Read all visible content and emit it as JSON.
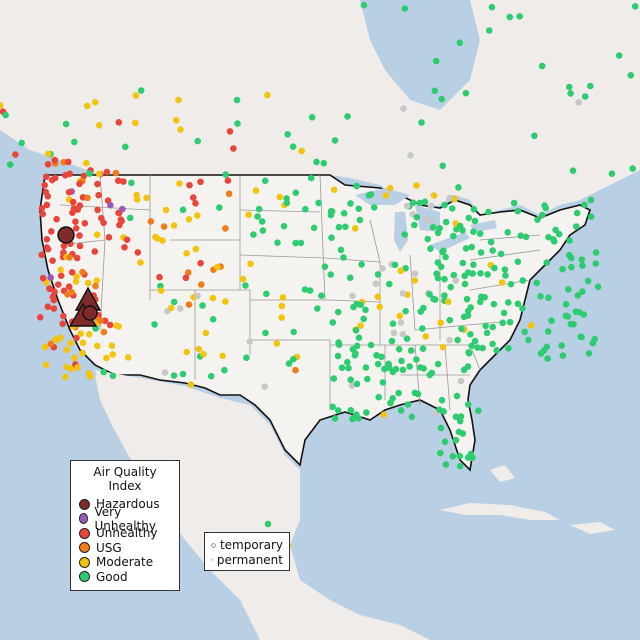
{
  "legend": {
    "title": "Air Quality Index",
    "categories": [
      {
        "label": "Hazardous",
        "color": "#7e2b2b"
      },
      {
        "label": "Very Unhealthy",
        "color": "#9b59b6"
      },
      {
        "label": "Unhealthy",
        "color": "#e8463c"
      },
      {
        "label": "USG",
        "color": "#f07d1a"
      },
      {
        "label": "Moderate",
        "color": "#f2c40f"
      },
      {
        "label": "Good",
        "color": "#2ecc71"
      }
    ]
  },
  "site_type_legend": {
    "temporary": "temporary",
    "permanent": "permanent"
  },
  "colors": {
    "water": "#b9cfe3",
    "land": "#efecea",
    "us_land": "#f5f3ef",
    "no_data": "#c8c8c8"
  }
}
